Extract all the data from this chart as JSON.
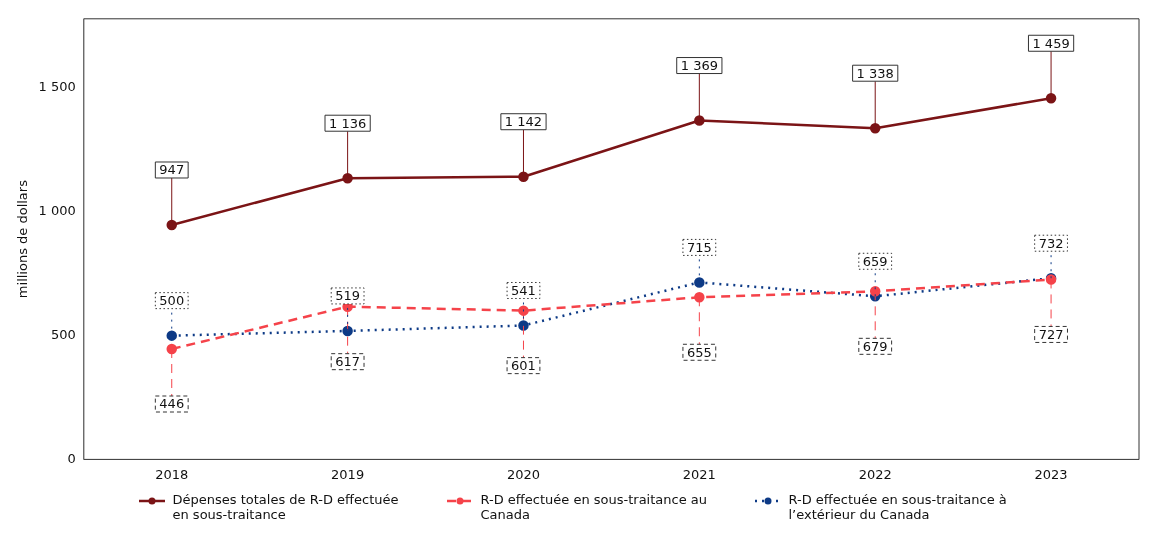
{
  "chart_data": {
    "type": "line",
    "ylabel": "millions de dollars",
    "categories": [
      "2018",
      "2019",
      "2020",
      "2021",
      "2022",
      "2023"
    ],
    "ylim": [
      0,
      1780
    ],
    "yticks": [
      0,
      {
        "value": 500,
        "label": "500"
      },
      {
        "value": 1000,
        "label": "1 000"
      },
      {
        "value": 1500,
        "label": "1 500"
      }
    ],
    "grid": false,
    "legend": "bottom",
    "marker": "circle",
    "series": [
      {
        "name": "Dépenses totales de R-D effectuée en sous-traitance",
        "color": "#7b1416",
        "line_style": "solid",
        "values": [
          947,
          1136,
          1142,
          1369,
          1338,
          1459
        ],
        "value_labels": [
          "947",
          "1 136",
          "1 142",
          "1 369",
          "1 338",
          "1 459"
        ]
      },
      {
        "name": "R-D effectuée en sous-traitance au Canada",
        "color": "#f5434a",
        "line_style": "dashed",
        "values": [
          446,
          617,
          601,
          655,
          679,
          727
        ],
        "value_labels": [
          "446",
          "617",
          "601",
          "655",
          "679",
          "727"
        ]
      },
      {
        "name": "R-D effectuée en sous-traitance à l’extérieur du Canada",
        "color": "#0d3a86",
        "line_style": "dotted",
        "values": [
          500,
          519,
          541,
          715,
          659,
          732
        ],
        "value_labels": [
          "500",
          "519",
          "541",
          "715",
          "659",
          "732"
        ]
      }
    ]
  }
}
